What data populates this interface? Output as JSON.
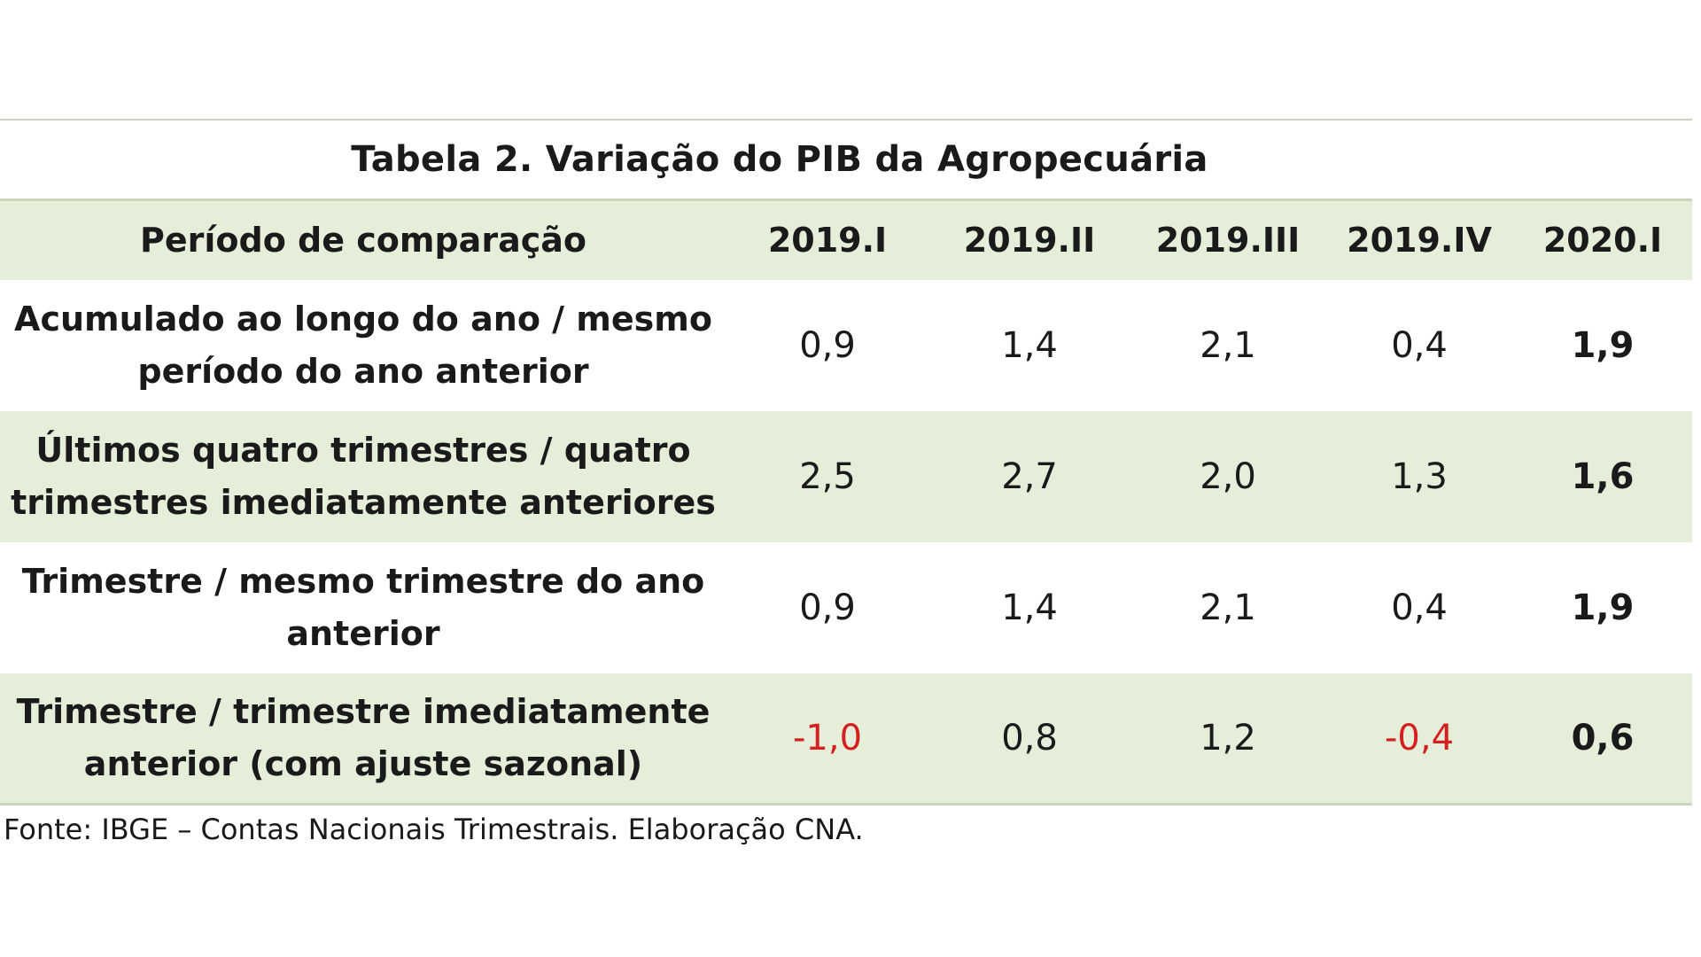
{
  "title": "Tabela 2.  Variação do PIB da Agropecuária",
  "header": {
    "label": "Período de comparação",
    "periods": [
      "2019.I",
      "2019.II",
      "2019.III",
      "2019.IV",
      "2020.I"
    ]
  },
  "rows": [
    {
      "label_line1": "Acumulado ao longo do ano / mesmo",
      "label_line2": "período do ano anterior",
      "values": [
        "0,9",
        "1,4",
        "2,1",
        "0,4",
        "1,9"
      ]
    },
    {
      "label_line1": "Últimos quatro trimestres / quatro",
      "label_line2": "trimestres imediatamente anteriores",
      "values": [
        "2,5",
        "2,7",
        "2,0",
        "1,3",
        "1,6"
      ]
    },
    {
      "label_line1": "Trimestre / mesmo trimestre do ano",
      "label_line2": "anterior",
      "values": [
        "0,9",
        "1,4",
        "2,1",
        "0,4",
        "1,9"
      ]
    },
    {
      "label_line1": "Trimestre / trimestre imediatamente",
      "label_line2": "anterior (com ajuste sazonal)",
      "values": [
        "-1,0",
        "0,8",
        "1,2",
        "-0,4",
        "0,6"
      ]
    }
  ],
  "source": "Fonte: IBGE – Contas Nacionais Trimestrais. Elaboração CNA.",
  "colors": {
    "row_shading": "#e4eed8",
    "negative_value": "#d42020"
  }
}
